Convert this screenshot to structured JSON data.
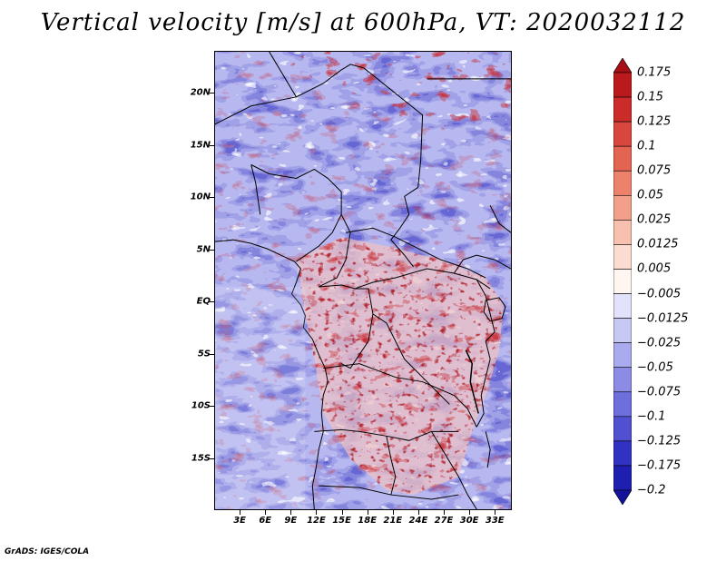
{
  "title": "Vertical velocity [m/s] at 600hPa, VT: 2020032112",
  "map": {
    "region": "Central Africa",
    "lon_range": [
      0,
      35
    ],
    "lat_range": [
      -20,
      24
    ],
    "lat_labels": [
      {
        "text": "20N",
        "lat": 20
      },
      {
        "text": "15N",
        "lat": 15
      },
      {
        "text": "10N",
        "lat": 10
      },
      {
        "text": "5N",
        "lat": 5
      },
      {
        "text": "EQ",
        "lat": 0
      },
      {
        "text": "5S",
        "lat": -5
      },
      {
        "text": "10S",
        "lat": -10
      },
      {
        "text": "15S",
        "lat": -15
      }
    ],
    "lon_labels": [
      {
        "text": "3E",
        "lon": 3
      },
      {
        "text": "6E",
        "lon": 6
      },
      {
        "text": "9E",
        "lon": 9
      },
      {
        "text": "12E",
        "lon": 12
      },
      {
        "text": "15E",
        "lon": 15
      },
      {
        "text": "18E",
        "lon": 18
      },
      {
        "text": "21E",
        "lon": 21
      },
      {
        "text": "24E",
        "lon": 24
      },
      {
        "text": "27E",
        "lon": 27
      },
      {
        "text": "30E",
        "lon": 30
      },
      {
        "text": "33E",
        "lon": 33
      }
    ]
  },
  "colorbar": {
    "labels": [
      "0.175",
      "0.15",
      "0.125",
      "0.1",
      "0.075",
      "0.05",
      "0.025",
      "0.0125",
      "0.005",
      "−0.005",
      "−0.0125",
      "−0.025",
      "−0.05",
      "−0.075",
      "−0.1",
      "−0.125",
      "−0.175",
      "−0.2"
    ],
    "colors": [
      "#a50f15",
      "#bb1a1d",
      "#cb2c2a",
      "#d9463d",
      "#e46452",
      "#ed826c",
      "#f3a08a",
      "#f8c0ae",
      "#fcdcd0",
      "#fff6f2",
      "#e2e2fa",
      "#c8c8f4",
      "#aaaaee",
      "#8c8ce6",
      "#6e6edc",
      "#5050d0",
      "#3232c2",
      "#1e1eb0",
      "#12129c"
    ],
    "top_arrow_color": "#a50f15",
    "bottom_arrow_color": "#12129c"
  },
  "credit": "GrADS: IGES/COLA"
}
